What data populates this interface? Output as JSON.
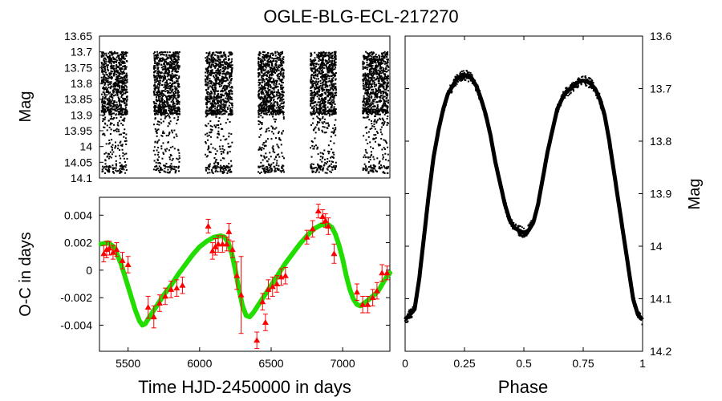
{
  "title": "OGLE-BLG-ECL-217270",
  "chart_data": [
    {
      "id": "lightcurve",
      "type": "scatter",
      "ylabel": "Mag",
      "xlim": [
        5300,
        7330
      ],
      "ylim": [
        14.1,
        13.65
      ],
      "y_inverted": true,
      "yticks": [
        "13.65",
        "13.7",
        "13.75",
        "13.8",
        "13.85",
        "13.9",
        "13.95",
        "14",
        "14.05",
        "14.1"
      ],
      "seasons": [
        [
          5315,
          5495
        ],
        [
          5680,
          5860
        ],
        [
          6040,
          6230
        ],
        [
          6410,
          6590
        ],
        [
          6775,
          6955
        ],
        [
          7140,
          7320
        ]
      ],
      "mag_range": [
        13.695,
        14.09
      ],
      "color": "#000000"
    },
    {
      "id": "oc",
      "type": "scatter",
      "xlabel": "Time HJD-2450000 in days",
      "ylabel": "O-C in days",
      "xlim": [
        5300,
        7330
      ],
      "ylim": [
        -0.0059,
        0.0053
      ],
      "xticks": [
        "5500",
        "6000",
        "6500",
        "7000"
      ],
      "yticks": [
        "0.004",
        "0.002",
        "0",
        "-0.002",
        "-0.004"
      ],
      "points": [
        {
          "x": 5330,
          "y": 0.0012,
          "e": 0.0006
        },
        {
          "x": 5350,
          "y": 0.0015,
          "e": 0.0006
        },
        {
          "x": 5370,
          "y": 0.0016,
          "e": 0.0005
        },
        {
          "x": 5395,
          "y": 0.0013,
          "e": 0.0005
        },
        {
          "x": 5420,
          "y": 0.0015,
          "e": 0.0005
        },
        {
          "x": 5460,
          "y": 0.0007,
          "e": 0.0006
        },
        {
          "x": 5500,
          "y": 0.0004,
          "e": 0.0006
        },
        {
          "x": 5640,
          "y": -0.0027,
          "e": 0.0008
        },
        {
          "x": 5680,
          "y": -0.0034,
          "e": 0.0008
        },
        {
          "x": 5720,
          "y": -0.0024,
          "e": 0.0006
        },
        {
          "x": 5760,
          "y": -0.0019,
          "e": 0.0006
        },
        {
          "x": 5800,
          "y": -0.0014,
          "e": 0.0006
        },
        {
          "x": 5840,
          "y": -0.0013,
          "e": 0.0006
        },
        {
          "x": 5880,
          "y": -0.0011,
          "e": 0.0006
        },
        {
          "x": 6060,
          "y": 0.0032,
          "e": 0.0005
        },
        {
          "x": 6090,
          "y": 0.0014,
          "e": 0.0006
        },
        {
          "x": 6110,
          "y": 0.0017,
          "e": 0.0006
        },
        {
          "x": 6130,
          "y": 0.0019,
          "e": 0.0006
        },
        {
          "x": 6160,
          "y": 0.0019,
          "e": 0.0006
        },
        {
          "x": 6190,
          "y": 0.0019,
          "e": 0.0005
        },
        {
          "x": 6205,
          "y": 0.0028,
          "e": 0.0006
        },
        {
          "x": 6230,
          "y": 0.0015,
          "e": 0.0006
        },
        {
          "x": 6260,
          "y": -0.0004,
          "e": 0.001
        },
        {
          "x": 6290,
          "y": -0.0018,
          "e": 0.0028
        },
        {
          "x": 6400,
          "y": -0.0051,
          "e": 0.0006
        },
        {
          "x": 6440,
          "y": -0.0023,
          "e": 0.0006
        },
        {
          "x": 6460,
          "y": -0.0038,
          "e": 0.0006
        },
        {
          "x": 6480,
          "y": -0.0014,
          "e": 0.0007
        },
        {
          "x": 6510,
          "y": -0.0012,
          "e": 0.0007
        },
        {
          "x": 6540,
          "y": -0.001,
          "e": 0.0006
        },
        {
          "x": 6570,
          "y": -0.0005,
          "e": 0.0006
        },
        {
          "x": 6600,
          "y": -0.0004,
          "e": 0.0006
        },
        {
          "x": 6750,
          "y": 0.0024,
          "e": 0.0005
        },
        {
          "x": 6790,
          "y": 0.003,
          "e": 0.0006
        },
        {
          "x": 6830,
          "y": 0.0043,
          "e": 0.0005
        },
        {
          "x": 6860,
          "y": 0.0039,
          "e": 0.0005
        },
        {
          "x": 6880,
          "y": 0.0036,
          "e": 0.0005
        },
        {
          "x": 6900,
          "y": 0.0032,
          "e": 0.0006
        },
        {
          "x": 6940,
          "y": 0.0012,
          "e": 0.0007
        },
        {
          "x": 7100,
          "y": -0.0016,
          "e": 0.0006
        },
        {
          "x": 7140,
          "y": -0.0025,
          "e": 0.0006
        },
        {
          "x": 7175,
          "y": -0.0025,
          "e": 0.0006
        },
        {
          "x": 7210,
          "y": -0.002,
          "e": 0.0006
        },
        {
          "x": 7240,
          "y": -0.0015,
          "e": 0.0006
        },
        {
          "x": 7275,
          "y": -0.0002,
          "e": 0.0006
        },
        {
          "x": 7310,
          "y": -0.0002,
          "e": 0.0005
        }
      ],
      "fit": {
        "x": [
          5310,
          5360,
          5400,
          5450,
          5500,
          5550,
          5580,
          5600,
          5620,
          5650,
          5700,
          5750,
          5800,
          5850,
          5900,
          5950,
          6000,
          6050,
          6100,
          6150,
          6175,
          6200,
          6225,
          6250,
          6275,
          6300,
          6325,
          6350,
          6375,
          6400,
          6450,
          6500,
          6550,
          6600,
          6650,
          6700,
          6750,
          6800,
          6850,
          6900,
          6925,
          6950,
          6975,
          7000,
          7025,
          7050,
          7075,
          7100,
          7125,
          7150,
          7175,
          7200,
          7250,
          7300,
          7330
        ],
        "y": [
          0.0019,
          0.002,
          0.0017,
          0.0005,
          -0.0012,
          -0.0029,
          -0.0037,
          -0.004,
          -0.0039,
          -0.0034,
          -0.0026,
          -0.0018,
          -0.0011,
          -0.0003,
          0.0004,
          0.0011,
          0.0017,
          0.0021,
          0.0024,
          0.0025,
          0.0024,
          0.002,
          0.0012,
          0.0,
          -0.0014,
          -0.0026,
          -0.0033,
          -0.0034,
          -0.0031,
          -0.0027,
          -0.0019,
          -0.0011,
          -0.0003,
          0.0005,
          0.0012,
          0.0019,
          0.0025,
          0.003,
          0.0033,
          0.0033,
          0.0031,
          0.0026,
          0.0018,
          0.0008,
          -0.0004,
          -0.0014,
          -0.0021,
          -0.0025,
          -0.0026,
          -0.0024,
          -0.0022,
          -0.002,
          -0.0015,
          -0.0006,
          -0.0002
        ]
      },
      "point_color": "#ff0000",
      "fit_color": "#22dd00"
    },
    {
      "id": "phase",
      "type": "line",
      "xlabel": "Phase",
      "ylabel": "Mag",
      "xlim": [
        0,
        1
      ],
      "ylim": [
        14.2,
        13.6
      ],
      "y_inverted": true,
      "xticks": [
        "0",
        "0.25",
        "0.5",
        "0.75",
        "1"
      ],
      "yticks": [
        "13.6",
        "13.7",
        "13.8",
        "13.9",
        "14",
        "14.1",
        "14.2"
      ],
      "curve": {
        "phase": [
          0.0,
          0.02,
          0.04,
          0.06,
          0.08,
          0.1,
          0.12,
          0.14,
          0.16,
          0.18,
          0.2,
          0.22,
          0.24,
          0.26,
          0.28,
          0.3,
          0.32,
          0.34,
          0.36,
          0.38,
          0.4,
          0.42,
          0.44,
          0.46,
          0.48,
          0.5,
          0.52,
          0.54,
          0.56,
          0.58,
          0.6,
          0.62,
          0.64,
          0.66,
          0.68,
          0.7,
          0.72,
          0.74,
          0.76,
          0.78,
          0.8,
          0.82,
          0.84,
          0.86,
          0.88,
          0.9,
          0.92,
          0.94,
          0.96,
          0.98,
          1.0
        ],
        "mag": [
          14.14,
          14.13,
          14.12,
          14.06,
          13.98,
          13.9,
          13.83,
          13.78,
          13.74,
          13.71,
          13.695,
          13.68,
          13.675,
          13.675,
          13.68,
          13.695,
          13.72,
          13.75,
          13.79,
          13.84,
          13.88,
          13.92,
          13.95,
          13.965,
          13.97,
          13.975,
          13.97,
          13.955,
          13.92,
          13.87,
          13.82,
          13.78,
          13.74,
          13.72,
          13.705,
          13.7,
          13.69,
          13.685,
          13.685,
          13.69,
          13.7,
          13.72,
          13.75,
          13.8,
          13.86,
          13.92,
          13.98,
          14.04,
          14.1,
          14.13,
          14.14
        ]
      },
      "color": "#000000"
    }
  ]
}
